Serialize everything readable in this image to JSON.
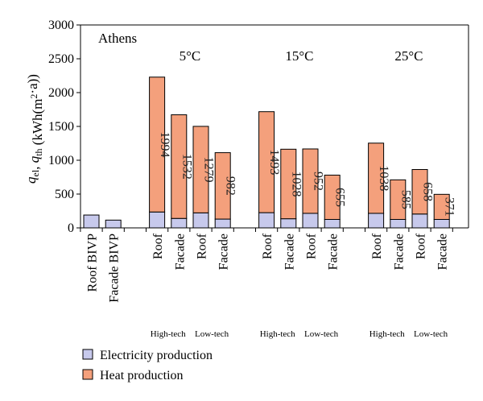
{
  "chart_data": {
    "type": "bar",
    "stacked": true,
    "annotation_city": "Athens",
    "ylabel": {
      "q1": "q",
      "s1": "el",
      "sep": ", ",
      "q2": "q",
      "s2": "th",
      "unit_open": " (kWh(m",
      "exp": "2",
      "unit_close": "·a))"
    },
    "ylim": [
      0,
      3000
    ],
    "yticks": [
      0,
      500,
      1000,
      1500,
      2000,
      2500,
      3000
    ],
    "ytick_labels": [
      "0",
      "500",
      "1000",
      "1500",
      "2000",
      "2500",
      "3000"
    ],
    "groups": [
      {
        "label": "",
        "slots": [
          0,
          1
        ]
      },
      {
        "label": "5°C",
        "slots": [
          3,
          4,
          5,
          6
        ]
      },
      {
        "label": "15°C",
        "slots": [
          8,
          9,
          10,
          11
        ]
      },
      {
        "label": "25°C",
        "slots": [
          13,
          14,
          15,
          16
        ]
      }
    ],
    "tech_labels": [
      {
        "text": "High-tech",
        "slots": [
          3,
          4
        ]
      },
      {
        "text": "Low-tech",
        "slots": [
          5,
          6
        ]
      },
      {
        "text": "High-tech",
        "slots": [
          8,
          9
        ]
      },
      {
        "text": "Low-tech",
        "slots": [
          10,
          11
        ]
      },
      {
        "text": "High-tech",
        "slots": [
          13,
          14
        ]
      },
      {
        "text": "Low-tech",
        "slots": [
          15,
          16
        ]
      }
    ],
    "bars": [
      {
        "slot": 0,
        "category": "Roof BIVP",
        "electricity": 190,
        "heat": 0,
        "heat_label": ""
      },
      {
        "slot": 1,
        "category": "Facade BIVP",
        "electricity": 115,
        "heat": 0,
        "heat_label": ""
      },
      {
        "slot": 3,
        "category": "Roof",
        "electricity": 235,
        "heat": 1994,
        "heat_label": "1994"
      },
      {
        "slot": 4,
        "category": "Facade",
        "electricity": 140,
        "heat": 1532,
        "heat_label": "1532"
      },
      {
        "slot": 5,
        "category": "Roof",
        "electricity": 222,
        "heat": 1279,
        "heat_label": "1279"
      },
      {
        "slot": 6,
        "category": "Facade",
        "electricity": 130,
        "heat": 982,
        "heat_label": "982"
      },
      {
        "slot": 8,
        "category": "Roof",
        "electricity": 225,
        "heat": 1493,
        "heat_label": "1493"
      },
      {
        "slot": 9,
        "category": "Facade",
        "electricity": 135,
        "heat": 1028,
        "heat_label": "1028"
      },
      {
        "slot": 10,
        "category": "Roof",
        "electricity": 215,
        "heat": 952,
        "heat_label": "952"
      },
      {
        "slot": 11,
        "category": "Facade",
        "electricity": 125,
        "heat": 655,
        "heat_label": "655"
      },
      {
        "slot": 13,
        "category": "Roof",
        "electricity": 215,
        "heat": 1038,
        "heat_label": "1038"
      },
      {
        "slot": 14,
        "category": "Facade",
        "electricity": 125,
        "heat": 585,
        "heat_label": "585"
      },
      {
        "slot": 15,
        "category": "Roof",
        "electricity": 205,
        "heat": 658,
        "heat_label": "658"
      },
      {
        "slot": 16,
        "category": "Facade",
        "electricity": 125,
        "heat": 371,
        "heat_label": "371"
      }
    ],
    "series": [
      {
        "key": "electricity",
        "name": "Electricity production",
        "color": "#c7c9ec"
      },
      {
        "key": "heat",
        "name": "Heat production",
        "color": "#f4a07c"
      }
    ],
    "bar_stroke": "#000000",
    "legend_position": "bottom-left",
    "grid": false
  }
}
